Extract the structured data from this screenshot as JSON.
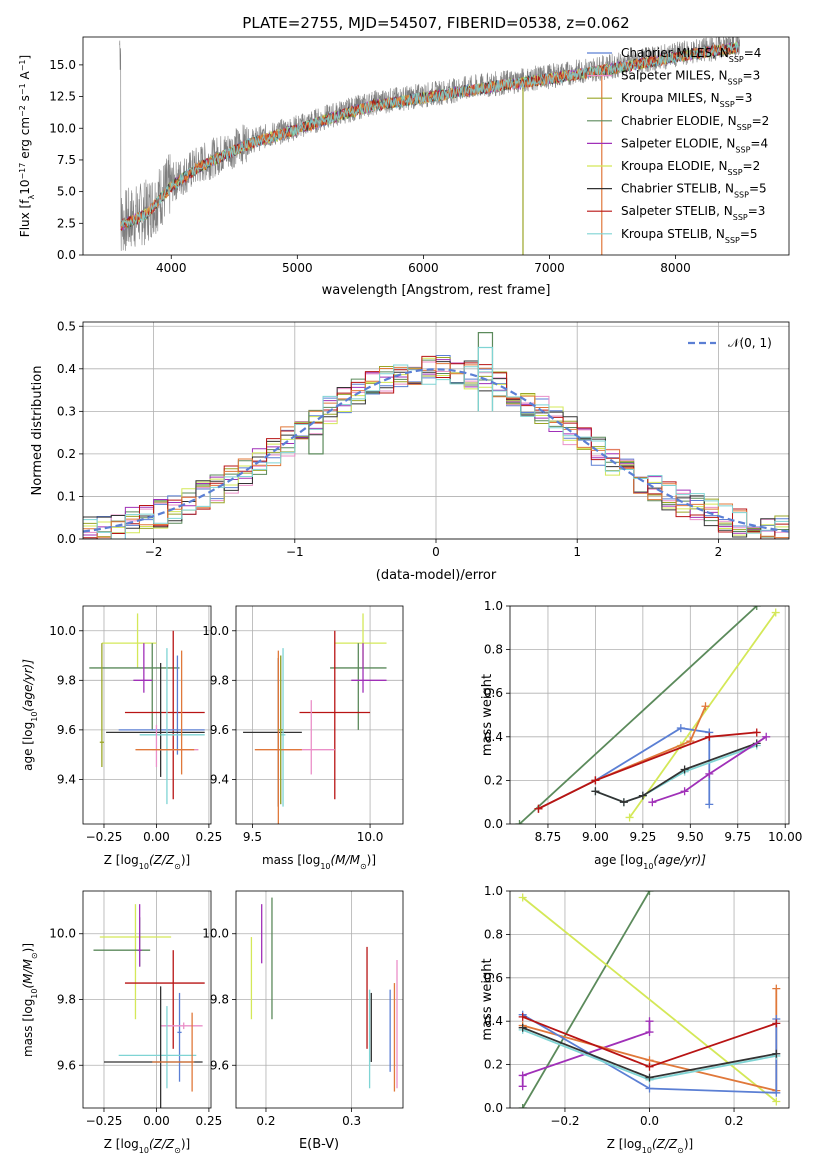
{
  "colors": {
    "chabrier_miles": "#5b7fd4",
    "salpeter_miles": "#ea8fc8",
    "kroupa_miles": "#9aa628",
    "chabrier_elodie": "#5b8a5b",
    "salpeter_elodie": "#a030b8",
    "kroupa_elodie": "#d4e858",
    "chabrier_stelib": "#333333",
    "salpeter_stelib": "#b81414",
    "kroupa_stelib": "#7fd4d4",
    "orange": "#e0783a",
    "observed": "#7f7f7f",
    "normal_curve": "#5b7fd4",
    "grid": "#b0b0b0"
  },
  "chart_data": [
    {
      "id": "spectrum",
      "type": "line",
      "title": "PLATE=2755, MJD=54507, FIBERID=0538, z=0.062",
      "xlabel": "wavelength [Angstrom, rest frame]",
      "ylabel": "Flux [f",
      "ylabel_sub": "λ",
      "ylabel_rest": "10",
      "ylabel_exp1": "−17",
      "ylabel_unit": " erg cm",
      "ylabel_exp2": "−2",
      "ylabel_s": " s",
      "ylabel_exp3": "−1",
      "ylabel_A": " A",
      "ylabel_exp4": "−1",
      "ylabel_close": "]",
      "xlim": [
        3300,
        8900
      ],
      "ylim": [
        0,
        17.2
      ],
      "xticks": [
        "4000",
        "5000",
        "6000",
        "7000",
        "8000"
      ],
      "yticks": [
        "0.0",
        "2.5",
        "5.0",
        "7.5",
        "10.0",
        "12.5",
        "15.0"
      ],
      "continuum": {
        "x": [
          3600,
          3800,
          4000,
          4200,
          4400,
          4600,
          4800,
          5000,
          5300,
          5600,
          6000,
          6500,
          7000,
          7500,
          8000,
          8500
        ],
        "y": [
          2.5,
          3.4,
          5.6,
          7.0,
          8.0,
          8.9,
          9.5,
          10.1,
          11.1,
          12.0,
          12.6,
          13.4,
          14.1,
          14.9,
          15.8,
          16.6
        ]
      },
      "legend": [
        {
          "name": "Chabrier MILES, N",
          "sub": "SSP",
          "val": "=4",
          "key": "chabrier_miles"
        },
        {
          "name": "Salpeter MILES, N",
          "sub": "SSP",
          "val": "=3",
          "key": "salpeter_miles"
        },
        {
          "name": "Kroupa MILES, N",
          "sub": "SSP",
          "val": "=3",
          "key": "kroupa_miles"
        },
        {
          "name": "Chabrier ELODIE, N",
          "sub": "SSP",
          "val": "=2",
          "key": "chabrier_elodie"
        },
        {
          "name": "Salpeter ELODIE, N",
          "sub": "SSP",
          "val": "=4",
          "key": "salpeter_elodie"
        },
        {
          "name": "Kroupa ELODIE, N",
          "sub": "SSP",
          "val": "=2",
          "key": "kroupa_elodie"
        },
        {
          "name": "Chabrier STELIB, N",
          "sub": "SSP",
          "val": "=5",
          "key": "chabrier_stelib"
        },
        {
          "name": "Salpeter STELIB, N",
          "sub": "SSP",
          "val": "=3",
          "key": "salpeter_stelib"
        },
        {
          "name": "Kroupa STELIB, N",
          "sub": "SSP",
          "val": "=5",
          "key": "kroupa_stelib"
        }
      ]
    },
    {
      "id": "residual_hist",
      "type": "histogram",
      "xlabel": "(data-model)/error",
      "ylabel": "Normed distribution",
      "xlim": [
        -2.5,
        2.5
      ],
      "ylim": [
        0,
        0.51
      ],
      "xticks": [
        "−2",
        "−1",
        "0",
        "1",
        "2"
      ],
      "yticks": [
        "0.0",
        "0.1",
        "0.2",
        "0.3",
        "0.4",
        "0.5"
      ],
      "legend_label": "𝒩(0, 1)",
      "bin_width": 0.1,
      "highlight_bins": [
        {
          "key": "chabrier_elodie",
          "x": -0.85,
          "h": 0.2
        },
        {
          "key": "chabrier_elodie",
          "x": 0.35,
          "h": 0.485
        },
        {
          "key": "kroupa_stelib",
          "x": 0.35,
          "h": 0.45
        }
      ]
    },
    {
      "id": "age_vs_Z",
      "type": "errorbar",
      "xlabel": "Z [log",
      "xlabel_sub": "10",
      "xlabel_rest": "(Z/Z",
      "xlabel_sun": "⊙",
      "xlabel_close": ")]",
      "ylabel": "age  [log",
      "ylabel_sub": "10",
      "ylabel_rest": "(age/yr)]",
      "xlim": [
        -0.35,
        0.26
      ],
      "ylim": [
        9.22,
        10.1
      ],
      "xticks": [
        "−0.25",
        "0.00",
        "0.25"
      ],
      "yticks": [
        "9.4",
        "9.6",
        "9.8",
        "10.0"
      ],
      "points": [
        {
          "key": "kroupa_elodie",
          "x": -0.09,
          "y": 9.95,
          "xerr": [
            0.17,
            0.09
          ],
          "yerr": [
            0.1,
            0.12
          ]
        },
        {
          "key": "chabrier_elodie",
          "x": -0.02,
          "y": 9.85,
          "xerr": [
            0.3,
            0.13
          ],
          "yerr": [
            0.25,
            0.1
          ]
        },
        {
          "key": "salpeter_elodie",
          "x": -0.06,
          "y": 9.8,
          "xerr": [
            0.05,
            0.04
          ],
          "yerr": [
            0.05,
            0.15
          ]
        },
        {
          "key": "salpeter_stelib",
          "x": 0.08,
          "y": 9.67,
          "xerr": [
            0.23,
            0.15
          ],
          "yerr": [
            0.35,
            0.33
          ]
        },
        {
          "key": "chabrier_miles",
          "x": 0.1,
          "y": 9.6,
          "xerr": [
            0.28,
            0.13
          ],
          "yerr": [
            0.1,
            0.3
          ]
        },
        {
          "key": "chabrier_stelib",
          "x": 0.02,
          "y": 9.59,
          "xerr": [
            0.26,
            0.21
          ],
          "yerr": [
            0.18,
            0.28
          ]
        },
        {
          "key": "kroupa_stelib",
          "x": 0.05,
          "y": 9.58,
          "xerr": [
            0.13,
            0.18
          ],
          "yerr": [
            0.28,
            0.35
          ]
        },
        {
          "key": "salpeter_miles",
          "x": 0.0,
          "y": 9.52,
          "xerr": [
            0.02,
            0.2
          ],
          "yerr": [
            0.07,
            0.1
          ]
        },
        {
          "key": "orange",
          "x": 0.12,
          "y": 9.52,
          "xerr": [
            0.22,
            0.06
          ],
          "yerr": [
            0.1,
            0.4
          ]
        },
        {
          "key": "kroupa_miles",
          "x": -0.26,
          "y": 9.55,
          "xerr": [
            0.01,
            0.01
          ],
          "yerr": [
            0.1,
            0.4
          ]
        }
      ]
    },
    {
      "id": "age_vs_mass",
      "type": "errorbar",
      "xlabel": "mass [log",
      "xlabel_sub": "10",
      "xlabel_rest": "(M/M",
      "xlabel_sun": "⊙",
      "xlabel_close": ")]",
      "xlim": [
        9.43,
        10.14
      ],
      "ylim": [
        9.22,
        10.1
      ],
      "xticks": [
        "9.5",
        "10.0"
      ],
      "yticks": [
        "9.4",
        "9.6",
        "9.8",
        "10.0"
      ],
      "points": [
        {
          "key": "kroupa_elodie",
          "x": 9.97,
          "y": 9.95,
          "xerr": [
            0.12,
            0.1
          ],
          "yerr": [
            0.1,
            0.12
          ]
        },
        {
          "key": "chabrier_elodie",
          "x": 9.95,
          "y": 9.85,
          "xerr": [
            0.12,
            0.12
          ],
          "yerr": [
            0.25,
            0.1
          ]
        },
        {
          "key": "salpeter_elodie",
          "x": 9.97,
          "y": 9.8,
          "xerr": [
            0.05,
            0.1
          ],
          "yerr": [
            0.05,
            0.15
          ]
        },
        {
          "key": "salpeter_stelib",
          "x": 9.85,
          "y": 9.67,
          "xerr": [
            0.15,
            0.15
          ],
          "yerr": [
            0.35,
            0.33
          ]
        },
        {
          "key": "chabrier_miles",
          "x": 9.62,
          "y": 9.6,
          "xerr": [
            0.01,
            0.01
          ],
          "yerr": [
            0.3,
            0.3
          ]
        },
        {
          "key": "chabrier_stelib",
          "x": 9.61,
          "y": 9.59,
          "xerr": [
            0.15,
            0.1
          ],
          "yerr": [
            0.3,
            0.3
          ]
        },
        {
          "key": "kroupa_stelib",
          "x": 9.63,
          "y": 9.58,
          "xerr": [
            0.01,
            0.01
          ],
          "yerr": [
            0.29,
            0.35
          ]
        },
        {
          "key": "salpeter_miles",
          "x": 9.75,
          "y": 9.52,
          "xerr": [
            0.15,
            0.1
          ],
          "yerr": [
            0.1,
            0.2
          ]
        },
        {
          "key": "orange",
          "x": 9.61,
          "y": 9.52,
          "xerr": [
            0.1,
            0.1
          ],
          "yerr": [
            0.3,
            0.4
          ]
        },
        {
          "key": "kroupa_miles",
          "x": 9.62,
          "y": 9.6,
          "xerr": [
            0.01,
            0.01
          ],
          "yerr": [
            0.3,
            0.3
          ]
        }
      ]
    },
    {
      "id": "massweight_vs_age",
      "type": "line",
      "xlabel": "age  [log",
      "xlabel_sub": "10",
      "xlabel_rest": "(age/yr)]",
      "ylabel": "mass weight",
      "xlim": [
        8.55,
        10.02
      ],
      "ylim": [
        0,
        1
      ],
      "xticks": [
        "8.75",
        "9.00",
        "9.25",
        "9.50",
        "9.75",
        "10.00"
      ],
      "yticks": [
        "0.0",
        "0.2",
        "0.4",
        "0.6",
        "0.8",
        "1.0"
      ],
      "series": [
        {
          "key": "chabrier_elodie",
          "x": [
            8.6,
            9.85
          ],
          "y": [
            0.0,
            1.0
          ]
        },
        {
          "key": "kroupa_elodie",
          "x": [
            9.18,
            9.45,
            9.95
          ],
          "y": [
            0.03,
            0.36,
            0.97
          ]
        },
        {
          "key": "chabrier_miles",
          "x": [
            8.7,
            9.0,
            9.45,
            9.6,
            9.6
          ],
          "y": [
            0.07,
            0.2,
            0.44,
            0.42,
            0.09
          ]
        },
        {
          "key": "orange",
          "x": [
            8.7,
            9.0,
            9.5,
            9.58
          ],
          "y": [
            0.07,
            0.2,
            0.38,
            0.54
          ]
        },
        {
          "key": "salpeter_stelib",
          "x": [
            8.7,
            9.0,
            9.6,
            9.85
          ],
          "y": [
            0.07,
            0.2,
            0.4,
            0.42
          ]
        },
        {
          "key": "kroupa_stelib",
          "x": [
            9.0,
            9.15,
            9.25,
            9.47,
            9.85
          ],
          "y": [
            0.15,
            0.1,
            0.13,
            0.24,
            0.36
          ]
        },
        {
          "key": "chabrier_stelib",
          "x": [
            9.0,
            9.15,
            9.25,
            9.47,
            9.85
          ],
          "y": [
            0.15,
            0.1,
            0.13,
            0.25,
            0.37
          ]
        },
        {
          "key": "salpeter_elodie",
          "x": [
            9.3,
            9.47,
            9.6,
            9.9
          ],
          "y": [
            0.1,
            0.15,
            0.23,
            0.4
          ]
        }
      ]
    },
    {
      "id": "mass_vs_Z",
      "type": "errorbar",
      "xlabel": "Z [log",
      "xlabel_sub": "10",
      "xlabel_rest": "(Z/Z",
      "xlabel_sun": "⊙",
      "xlabel_close": ")]",
      "ylabel": "mass [log",
      "ylabel_sub": "10",
      "ylabel_rest": "(M/M",
      "ylabel_sun": "⊙",
      "ylabel_close": ")]",
      "xlim": [
        -0.35,
        0.26
      ],
      "ylim": [
        9.47,
        10.13
      ],
      "xticks": [
        "−0.25",
        "0.00",
        "0.25"
      ],
      "yticks": [
        "9.6",
        "9.8",
        "10.0"
      ],
      "points": [
        {
          "key": "kroupa_elodie",
          "x": -0.1,
          "y": 9.99,
          "xerr": [
            0.17,
            0.17
          ],
          "yerr": [
            0.25,
            0.1
          ]
        },
        {
          "key": "chabrier_elodie",
          "x": -0.08,
          "y": 9.95,
          "xerr": [
            0.22,
            0.05
          ],
          "yerr": [
            0.05,
            0.1
          ]
        },
        {
          "key": "salpeter_elodie",
          "x": -0.08,
          "y": 9.95,
          "xerr": [
            0.01,
            0.01
          ],
          "yerr": [
            0.05,
            0.14
          ]
        },
        {
          "key": "salpeter_stelib",
          "x": 0.08,
          "y": 9.85,
          "xerr": [
            0.23,
            0.15
          ],
          "yerr": [
            0.2,
            0.1
          ]
        },
        {
          "key": "chabrier_miles",
          "x": 0.11,
          "y": 9.7,
          "xerr": [
            0.01,
            0.01
          ],
          "yerr": [
            0.15,
            0.12
          ]
        },
        {
          "key": "salpeter_miles",
          "x": 0.13,
          "y": 9.72,
          "xerr": [
            0.11,
            0.09
          ],
          "yerr": [
            0.01,
            0.01
          ]
        },
        {
          "key": "kroupa_stelib",
          "x": 0.05,
          "y": 9.63,
          "xerr": [
            0.23,
            0.14
          ],
          "yerr": [
            0.1,
            0.15
          ]
        },
        {
          "key": "chabrier_stelib",
          "x": 0.02,
          "y": 9.61,
          "xerr": [
            0.27,
            0.2
          ],
          "yerr": [
            0.15,
            0.23
          ]
        },
        {
          "key": "orange",
          "x": 0.17,
          "y": 9.61,
          "xerr": [
            0.19,
            0.01
          ],
          "yerr": [
            0.09,
            0.15
          ]
        }
      ]
    },
    {
      "id": "mass_vs_ebv",
      "type": "errorbar",
      "xlabel": "E(B-V)",
      "xlim": [
        0.165,
        0.36
      ],
      "ylim": [
        9.47,
        10.13
      ],
      "xticks": [
        "0.2",
        "0.3"
      ],
      "yticks": [
        "9.6",
        "9.8",
        "10.0"
      ],
      "points": [
        {
          "key": "kroupa_elodie",
          "x": 0.183,
          "y": 9.89,
          "yerr": [
            0.15,
            0.1
          ]
        },
        {
          "key": "salpeter_elodie",
          "x": 0.195,
          "y": 10.0,
          "yerr": [
            0.09,
            0.09
          ]
        },
        {
          "key": "chabrier_elodie",
          "x": 0.207,
          "y": 9.92,
          "yerr": [
            0.18,
            0.19
          ]
        },
        {
          "key": "salpeter_stelib",
          "x": 0.318,
          "y": 9.83,
          "yerr": [
            0.18,
            0.13
          ]
        },
        {
          "key": "kroupa_stelib",
          "x": 0.321,
          "y": 9.68,
          "yerr": [
            0.15,
            0.15
          ]
        },
        {
          "key": "chabrier_stelib",
          "x": 0.323,
          "y": 9.71,
          "yerr": [
            0.1,
            0.11
          ]
        },
        {
          "key": "chabrier_miles",
          "x": 0.345,
          "y": 9.68,
          "yerr": [
            0.1,
            0.15
          ]
        },
        {
          "key": "orange",
          "x": 0.35,
          "y": 9.72,
          "yerr": [
            0.2,
            0.13
          ]
        },
        {
          "key": "salpeter_miles",
          "x": 0.353,
          "y": 9.73,
          "yerr": [
            0.2,
            0.19
          ]
        }
      ]
    },
    {
      "id": "massweight_vs_Z",
      "type": "line",
      "xlabel": "Z [log",
      "xlabel_sub": "10",
      "xlabel_rest": "(Z/Z",
      "xlabel_sun": "⊙",
      "xlabel_close": ")]",
      "ylabel": "mass weight",
      "xlim": [
        -0.33,
        0.33
      ],
      "ylim": [
        0,
        1
      ],
      "xticks": [
        "−0.2",
        "0.0",
        "0.2"
      ],
      "yticks": [
        "0.0",
        "0.2",
        "0.4",
        "0.6",
        "0.8",
        "1.0"
      ],
      "series": [
        {
          "key": "chabrier_elodie",
          "x": [
            -0.3,
            0.0
          ],
          "y": [
            0.0,
            1.0
          ]
        },
        {
          "key": "kroupa_elodie",
          "x": [
            -0.3,
            0.3
          ],
          "y": [
            0.97,
            0.03
          ]
        },
        {
          "key": "salpeter_elodie",
          "x": [
            -0.3,
            -0.3,
            0.0,
            0.0
          ],
          "y": [
            0.1,
            0.15,
            0.35,
            0.4
          ]
        },
        {
          "key": "orange",
          "x": [
            -0.3,
            0.0,
            0.3,
            0.3
          ],
          "y": [
            0.38,
            0.22,
            0.08,
            0.55
          ]
        },
        {
          "key": "chabrier_miles",
          "x": [
            -0.3,
            0.0,
            0.3,
            0.3
          ],
          "y": [
            0.43,
            0.09,
            0.07,
            0.41
          ]
        },
        {
          "key": "salpeter_stelib",
          "x": [
            -0.3,
            0.0,
            0.3
          ],
          "y": [
            0.42,
            0.19,
            0.39
          ]
        },
        {
          "key": "kroupa_stelib",
          "x": [
            -0.3,
            0.0,
            0.3
          ],
          "y": [
            0.36,
            0.13,
            0.24
          ]
        },
        {
          "key": "chabrier_stelib",
          "x": [
            -0.3,
            0.0,
            0.3
          ],
          "y": [
            0.37,
            0.14,
            0.25
          ]
        }
      ]
    }
  ]
}
